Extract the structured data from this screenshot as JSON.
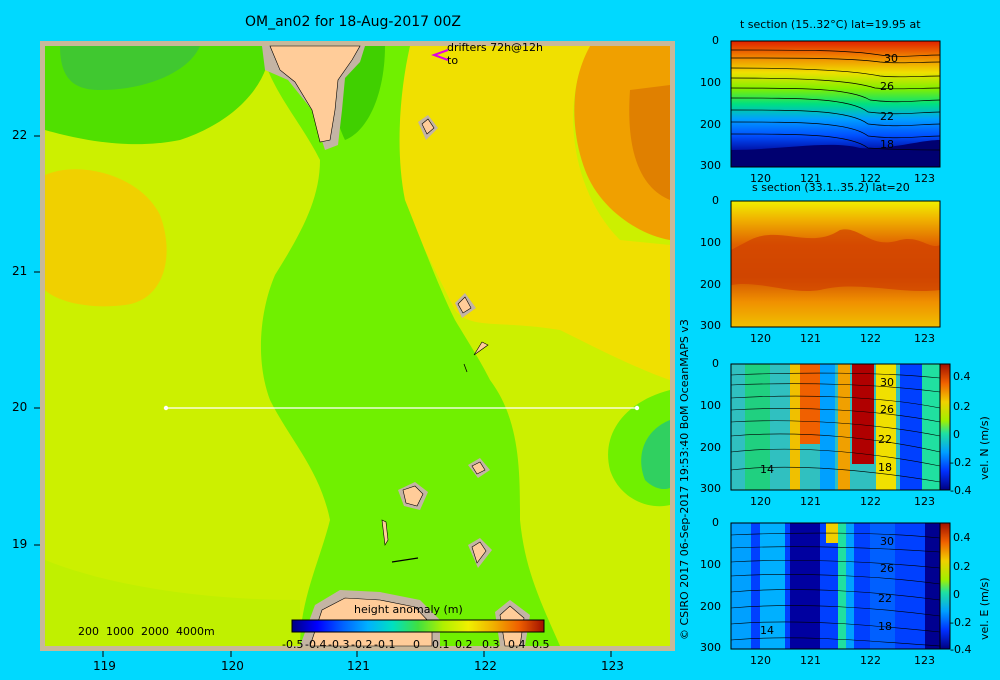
{
  "title": "OM_an02 for 18-Aug-2017 00Z",
  "map": {
    "x_ticks": [
      "119",
      "120",
      "121",
      "122",
      "123"
    ],
    "y_ticks": [
      "22",
      "21",
      "20",
      "19"
    ],
    "drifters_label": "drifters 72h@12h",
    "drifters_sub": "to",
    "depth_scale": "200  1000  2000  4000m",
    "colors": {
      "frame": "#c8b89a",
      "land": "#ffcc99",
      "shelf": "#c4b4a4",
      "line": "#ffffff"
    }
  },
  "colorbar": {
    "title": "height anomaly (m)",
    "labels": [
      "-0.5",
      "-0.4",
      "-0.3",
      "-0.2",
      "-0.1",
      "0",
      "0.1",
      "0.2",
      "0.3",
      "0.4",
      "0.5"
    ]
  },
  "panels": [
    {
      "title": "t section (15..32°C) lat=19.95 at",
      "y_ticks": [
        "0",
        "100",
        "200",
        "300"
      ],
      "x_ticks": [
        "120",
        "121",
        "122",
        "123"
      ],
      "contours": [
        "30",
        "26",
        "22",
        "18"
      ]
    },
    {
      "title": "s section (33.1..35.2) lat=20",
      "y_ticks": [
        "0",
        "100",
        "200",
        "300"
      ],
      "x_ticks": [
        "120",
        "121",
        "122",
        "123"
      ],
      "contours": []
    },
    {
      "title": "",
      "y_ticks": [
        "0",
        "100",
        "200",
        "300"
      ],
      "x_ticks": [
        "120",
        "121",
        "122",
        "123"
      ],
      "contours": [
        "30",
        "26",
        "22",
        "18",
        "14"
      ],
      "cb_labels": [
        "0.4",
        "0.2",
        "0",
        "-0.2",
        "-0.4"
      ],
      "cb_title": "vel. N (m/s)"
    },
    {
      "title": "",
      "y_ticks": [
        "0",
        "100",
        "200",
        "300"
      ],
      "x_ticks": [
        "120",
        "121",
        "122",
        "123"
      ],
      "contours": [
        "30",
        "26",
        "22",
        "18",
        "14"
      ],
      "cb_labels": [
        "0.4",
        "0.2",
        "0",
        "-0.2",
        "-0.4"
      ],
      "cb_title": "vel. E (m/s)"
    }
  ],
  "credit": "© CSIRO 2017   06-Sep-2017 19:53:40 BoM OceanMAPS v3"
}
